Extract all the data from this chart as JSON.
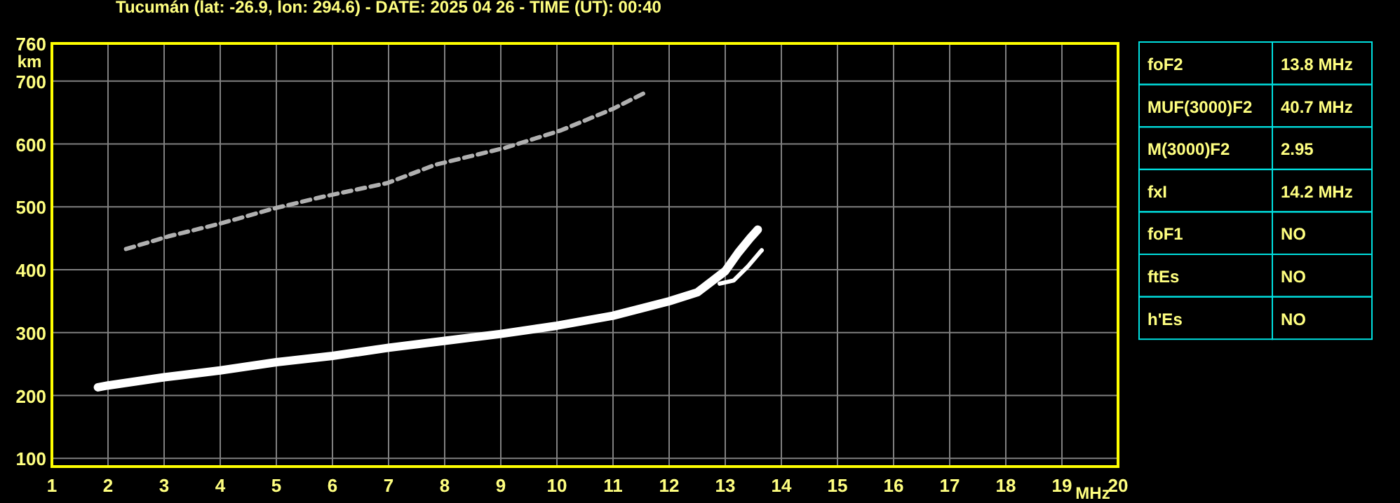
{
  "chart_data": [
    {
      "type": "line",
      "title": "Tucumán (lat: -26.9, lon: 294.6) - DATE: 2025 04 26 - TIME (UT): 00:40",
      "xlabel": "MHz",
      "ylabel": "km",
      "xlim": [
        1,
        20
      ],
      "ylim": [
        87,
        760
      ],
      "xticks": [
        1,
        2,
        3,
        4,
        5,
        6,
        7,
        8,
        9,
        10,
        11,
        12,
        13,
        14,
        15,
        16,
        17,
        18,
        19,
        20
      ],
      "yticks": [
        100,
        200,
        300,
        400,
        500,
        600,
        700,
        760
      ],
      "grid": true,
      "marker": "none",
      "series": [
        {
          "color": "#ffffff",
          "line_style": "solid",
          "x": [
            1.82,
            2,
            3,
            4,
            5,
            6,
            7,
            8,
            9,
            10,
            11,
            12,
            12.5,
            13,
            13.23,
            13.44,
            13.58
          ],
          "values": [
            213,
            216,
            229,
            240,
            253,
            263,
            276,
            287,
            298,
            311,
            327,
            350,
            364,
            398,
            427,
            450,
            464
          ]
        },
        {
          "color": "#ffffff",
          "line_style": "solid",
          "x": [
            12.9,
            13.15,
            13.4,
            13.61,
            13.65
          ],
          "values": [
            378,
            383,
            405,
            427,
            431
          ]
        },
        {
          "color": "#b0b0b0",
          "line_style": "dashed",
          "x": [
            2.32,
            3.07,
            3.98,
            4.98,
            5.82,
            6.98,
            7.83,
            9.08,
            10.08,
            11,
            11.6
          ],
          "values": [
            433,
            453,
            473,
            498,
            516,
            538,
            567,
            594,
            622,
            656,
            683
          ]
        }
      ]
    },
    {
      "type": "other",
      "categories": [
        "foF2",
        "MUF(3000)F2",
        "M(3000)F2",
        "fxI",
        "foF1",
        "ftEs",
        "h'Es"
      ],
      "value_labels": [
        "13.8 MHz",
        "40.7 MHz",
        "2.95",
        "14.2 MHz",
        "NO",
        "NO",
        "NO"
      ]
    }
  ]
}
